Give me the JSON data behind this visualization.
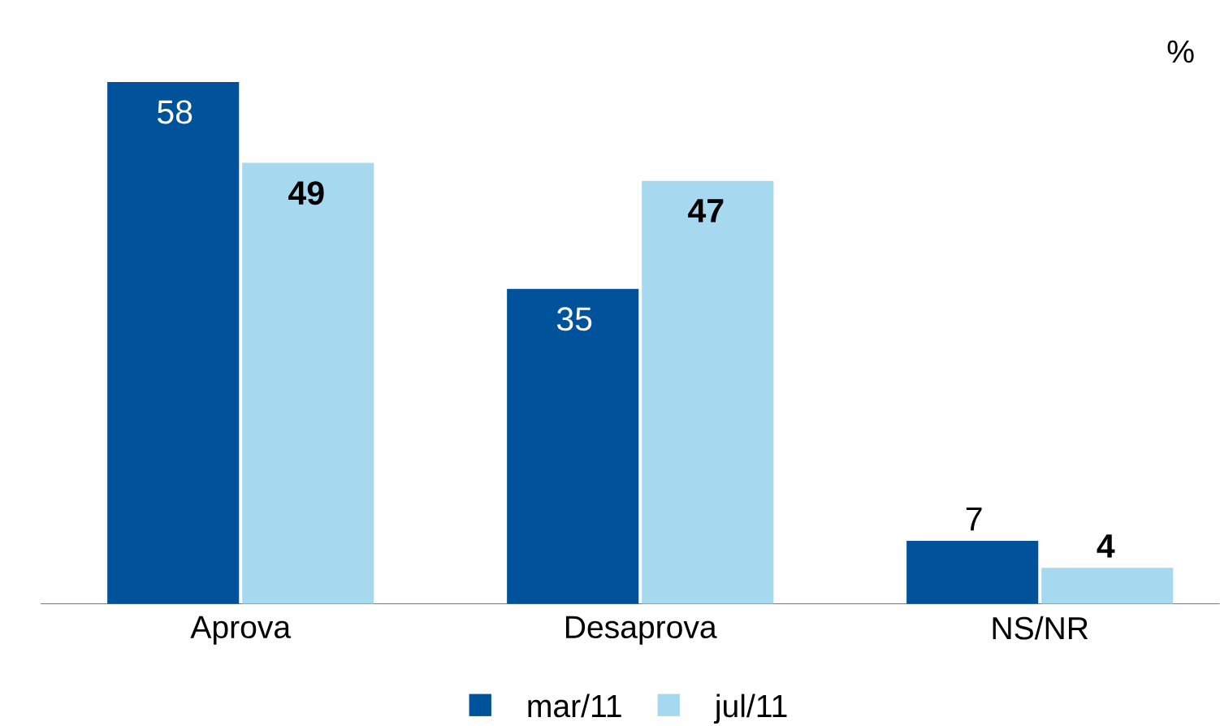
{
  "chart_data": {
    "type": "bar",
    "categories": [
      "Aprova",
      "Desaprova",
      "NS/NR"
    ],
    "series": [
      {
        "name": "mar/11",
        "color": "#00529b",
        "values": [
          58,
          35,
          7
        ]
      },
      {
        "name": "jul/11",
        "color": "#a6d9f0",
        "values": [
          49,
          47,
          4
        ]
      }
    ],
    "data_labels": true,
    "legend": "bottom",
    "annotations": [
      "%"
    ]
  }
}
